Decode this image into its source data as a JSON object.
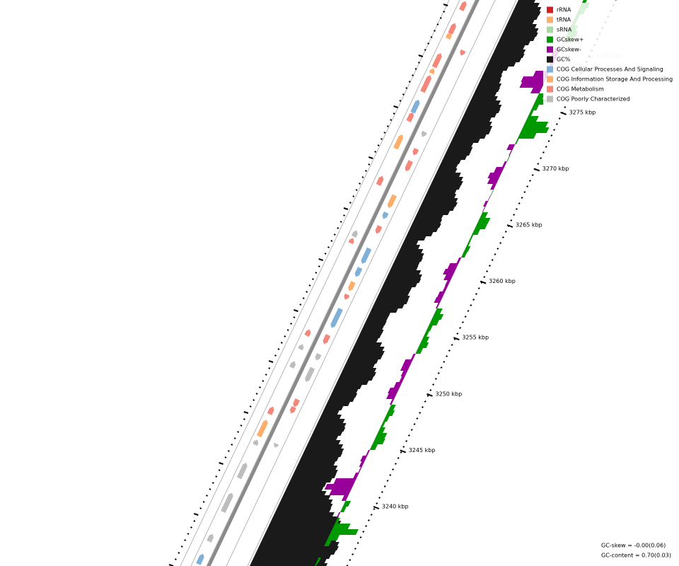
{
  "legend": {
    "items": [
      {
        "label": "rRNA",
        "color": "#d21f1f"
      },
      {
        "label": "tRNA",
        "color": "#fdae6b"
      },
      {
        "label": "sRNA",
        "color": "#a8dba0"
      },
      {
        "label": "GCskew+",
        "color": "#009900"
      },
      {
        "label": "GCskew-",
        "color": "#990099"
      },
      {
        "label": "GC%",
        "color": "#1a1a1a"
      },
      {
        "label": "COG Cellular Processes And Signaling",
        "color": "#7eb0d8"
      },
      {
        "label": "COG Information Storage And Processing",
        "color": "#fdae6b"
      },
      {
        "label": "COG Metabolism",
        "color": "#f4877a"
      },
      {
        "label": "COG Poorly Characterized",
        "color": "#bdbdbd"
      }
    ]
  },
  "ruler": {
    "labels": [
      "3240 kbp",
      "3245 kbp",
      "3250 kbp",
      "3255 kbp",
      "3260 kbp",
      "3265 kbp",
      "3270 kbp",
      "3275 kbp",
      "3280 kbp"
    ]
  },
  "footer": {
    "gc_skew": "GC-skew = -0.00(0.06)",
    "gc_content": "GC-content = 0.70(0.03)"
  }
}
